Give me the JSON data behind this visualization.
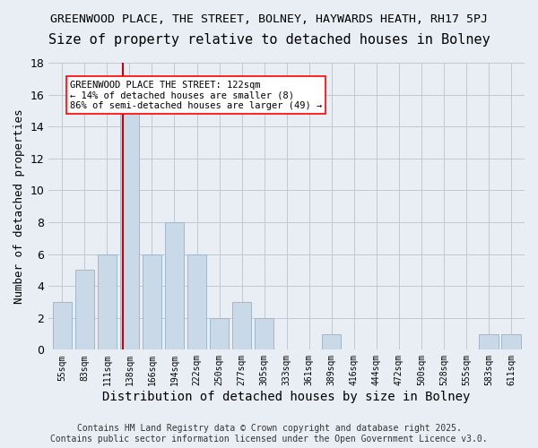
{
  "title1": "GREENWOOD PLACE, THE STREET, BOLNEY, HAYWARDS HEATH, RH17 5PJ",
  "title2": "Size of property relative to detached houses in Bolney",
  "xlabel": "Distribution of detached houses by size in Bolney",
  "ylabel": "Number of detached properties",
  "categories": [
    "55sqm",
    "83sqm",
    "111sqm",
    "138sqm",
    "166sqm",
    "194sqm",
    "222sqm",
    "250sqm",
    "277sqm",
    "305sqm",
    "333sqm",
    "361sqm",
    "389sqm",
    "416sqm",
    "444sqm",
    "472sqm",
    "500sqm",
    "528sqm",
    "555sqm",
    "583sqm",
    "611sqm"
  ],
  "values": [
    3,
    5,
    6,
    15,
    6,
    8,
    6,
    2,
    3,
    2,
    0,
    0,
    1,
    0,
    0,
    0,
    0,
    0,
    0,
    1,
    1
  ],
  "bar_color": "#c9d9e8",
  "bar_edge_color": "#a0b8cc",
  "grid_color": "#c0c8d0",
  "bg_color": "#e8eef4",
  "annotation_text": "GREENWOOD PLACE THE STREET: 122sqm\n← 14% of detached houses are smaller (8)\n86% of semi-detached houses are larger (49) →",
  "vline_color": "#cc0000",
  "vline_pos": 2.72,
  "ylim": [
    0,
    18
  ],
  "yticks": [
    0,
    2,
    4,
    6,
    8,
    10,
    12,
    14,
    16,
    18
  ],
  "footnote": "Contains HM Land Registry data © Crown copyright and database right 2025.\nContains public sector information licensed under the Open Government Licence v3.0.",
  "title_fontsize": 9.5,
  "subtitle_fontsize": 11,
  "ylabel_fontsize": 9,
  "xlabel_fontsize": 10,
  "annotation_fontsize": 7.5,
  "footnote_fontsize": 7
}
